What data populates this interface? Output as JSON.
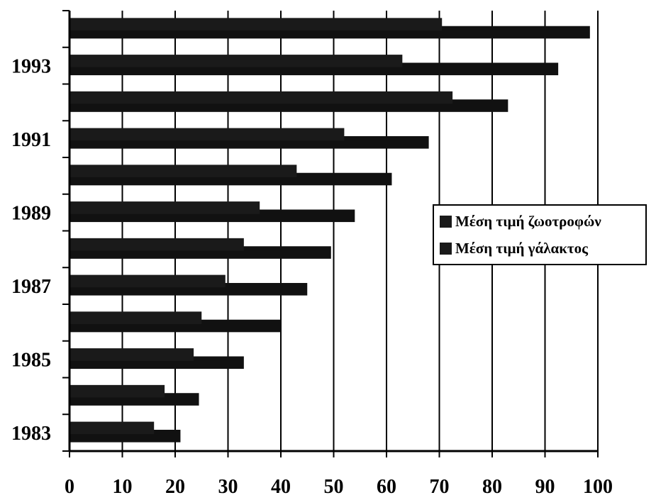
{
  "chart_data": {
    "type": "bar",
    "orientation": "horizontal",
    "title": "",
    "xlabel": "",
    "ylabel": "",
    "xlim": [
      0,
      100
    ],
    "x_ticks": [
      "0",
      "10",
      "20",
      "30",
      "40",
      "50",
      "60",
      "70",
      "80",
      "90",
      "100"
    ],
    "categories": [
      "1983",
      "1984",
      "1985",
      "1986",
      "1987",
      "1988",
      "1989",
      "1990",
      "1991",
      "1992",
      "1993",
      "1994"
    ],
    "category_labels": [
      "1983",
      "",
      "1985",
      "",
      "1987",
      "",
      "1989",
      "",
      "1991",
      "",
      "1993",
      ""
    ],
    "grid": true,
    "legend_position": "right",
    "series": [
      {
        "name": "Μέση τιμή ζωοτροφών",
        "color": "#1a1a1a",
        "values": [
          16,
          18,
          23.5,
          25,
          29.5,
          33,
          36,
          43,
          52,
          72.5,
          63,
          70.5
        ]
      },
      {
        "name": "Μέση τιμή γάλακτος",
        "color": "#111111",
        "values": [
          21,
          24.5,
          33,
          40,
          45,
          49.5,
          54,
          61,
          68,
          83,
          92.5,
          98.5
        ]
      }
    ]
  }
}
